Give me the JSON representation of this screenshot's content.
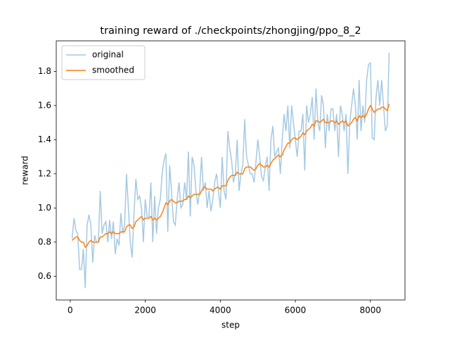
{
  "chart_data": {
    "type": "line",
    "title": "training reward of ./checkpoints/zhongjing/ppo_8_2",
    "x_label": "step",
    "y_label": "reward",
    "x": [
      50,
      100,
      150,
      200,
      250,
      300,
      350,
      400,
      450,
      500,
      550,
      600,
      650,
      700,
      750,
      800,
      850,
      900,
      950,
      1000,
      1050,
      1100,
      1150,
      1200,
      1250,
      1300,
      1350,
      1400,
      1450,
      1500,
      1550,
      1600,
      1650,
      1700,
      1750,
      1800,
      1850,
      1900,
      1950,
      2000,
      2050,
      2100,
      2150,
      2200,
      2250,
      2300,
      2350,
      2400,
      2450,
      2500,
      2550,
      2600,
      2650,
      2700,
      2750,
      2800,
      2850,
      2900,
      2950,
      3000,
      3050,
      3100,
      3150,
      3200,
      3250,
      3300,
      3350,
      3400,
      3450,
      3500,
      3550,
      3600,
      3650,
      3700,
      3750,
      3800,
      3850,
      3900,
      3950,
      4000,
      4050,
      4100,
      4150,
      4200,
      4250,
      4300,
      4350,
      4400,
      4450,
      4500,
      4550,
      4600,
      4650,
      4700,
      4750,
      4800,
      4850,
      4900,
      4950,
      5000,
      5050,
      5100,
      5150,
      5200,
      5250,
      5300,
      5350,
      5400,
      5450,
      5500,
      5550,
      5600,
      5650,
      5700,
      5750,
      5800,
      5850,
      5900,
      5950,
      6000,
      6050,
      6100,
      6150,
      6200,
      6250,
      6300,
      6350,
      6400,
      6450,
      6500,
      6550,
      6600,
      6650,
      6700,
      6750,
      6800,
      6850,
      6900,
      6950,
      7000,
      7050,
      7100,
      7150,
      7200,
      7250,
      7300,
      7350,
      7400,
      7450,
      7500,
      7550,
      7600,
      7650,
      7700,
      7750,
      7800,
      7850,
      7900,
      7950,
      8000,
      8050,
      8100,
      8150,
      8200,
      8250,
      8300,
      8350,
      8400,
      8450,
      8500
    ],
    "series": [
      {
        "name": "original",
        "color": "#1f77b4",
        "alpha": 0.4,
        "values": [
          0.82,
          0.94,
          0.87,
          0.85,
          0.64,
          0.64,
          0.76,
          0.53,
          0.9,
          0.96,
          0.9,
          0.68,
          0.84,
          0.8,
          0.8,
          1.1,
          0.85,
          0.9,
          0.92,
          0.8,
          0.93,
          0.82,
          0.92,
          0.73,
          0.82,
          0.78,
          0.97,
          0.85,
          0.9,
          1.2,
          1.0,
          0.8,
          0.71,
          0.97,
          1.17,
          1.05,
          1.07,
          1.0,
          0.8,
          1.05,
          0.95,
          0.95,
          1.15,
          0.8,
          1.07,
          0.85,
          1.0,
          1.05,
          1.2,
          1.28,
          1.32,
          0.86,
          1.25,
          1.1,
          0.92,
          0.9,
          1.05,
          1.15,
          1.0,
          1.02,
          1.15,
          1.05,
          1.33,
          0.95,
          1.3,
          1.25,
          1.1,
          1.02,
          1.1,
          1.3,
          1.1,
          1.15,
          1.0,
          1.1,
          0.98,
          1.05,
          1.15,
          1.2,
          1.1,
          1.0,
          1.3,
          1.1,
          1.05,
          1.45,
          1.35,
          1.28,
          1.15,
          1.2,
          1.4,
          1.1,
          1.2,
          1.25,
          1.52,
          1.3,
          1.25,
          1.2,
          1.2,
          1.15,
          1.27,
          1.4,
          1.3,
          1.18,
          1.16,
          1.25,
          1.3,
          1.1,
          1.4,
          1.48,
          1.3,
          1.33,
          1.35,
          1.2,
          1.4,
          1.55,
          1.45,
          1.6,
          1.35,
          1.6,
          1.5,
          1.4,
          1.3,
          1.45,
          1.45,
          1.55,
          1.22,
          1.6,
          1.5,
          1.55,
          1.65,
          1.4,
          1.7,
          1.5,
          1.45,
          1.66,
          1.6,
          1.35,
          1.55,
          1.45,
          1.58,
          1.58,
          1.45,
          1.55,
          1.3,
          1.6,
          1.55,
          1.45,
          1.55,
          1.2,
          1.5,
          1.6,
          1.7,
          1.6,
          1.4,
          1.75,
          1.45,
          1.6,
          1.5,
          1.75,
          1.84,
          1.85,
          1.41,
          1.4,
          1.65,
          1.75,
          1.6,
          1.75,
          1.6,
          1.45,
          1.48,
          1.91
        ]
      },
      {
        "name": "smoothed",
        "color": "#ff7f0e",
        "alpha": 1,
        "values": [
          0.81,
          0.82,
          0.83,
          0.83,
          0.81,
          0.8,
          0.8,
          0.77,
          0.78,
          0.8,
          0.81,
          0.8,
          0.8,
          0.8,
          0.8,
          0.83,
          0.83,
          0.84,
          0.85,
          0.85,
          0.86,
          0.85,
          0.86,
          0.85,
          0.85,
          0.85,
          0.86,
          0.86,
          0.86,
          0.89,
          0.9,
          0.9,
          0.88,
          0.89,
          0.92,
          0.93,
          0.94,
          0.95,
          0.93,
          0.94,
          0.94,
          0.94,
          0.95,
          0.93,
          0.94,
          0.93,
          0.94,
          0.95,
          0.97,
          1.0,
          1.03,
          1.02,
          1.04,
          1.05,
          1.04,
          1.03,
          1.03,
          1.04,
          1.04,
          1.04,
          1.05,
          1.05,
          1.07,
          1.06,
          1.07,
          1.08,
          1.08,
          1.08,
          1.08,
          1.1,
          1.12,
          1.12,
          1.11,
          1.11,
          1.11,
          1.1,
          1.11,
          1.12,
          1.12,
          1.11,
          1.13,
          1.13,
          1.13,
          1.16,
          1.18,
          1.19,
          1.19,
          1.19,
          1.21,
          1.2,
          1.2,
          1.2,
          1.23,
          1.24,
          1.24,
          1.24,
          1.23,
          1.22,
          1.23,
          1.25,
          1.26,
          1.25,
          1.24,
          1.24,
          1.25,
          1.24,
          1.26,
          1.28,
          1.29,
          1.3,
          1.31,
          1.3,
          1.31,
          1.34,
          1.36,
          1.38,
          1.38,
          1.4,
          1.41,
          1.41,
          1.4,
          1.41,
          1.42,
          1.44,
          1.43,
          1.45,
          1.46,
          1.47,
          1.49,
          1.48,
          1.51,
          1.51,
          1.5,
          1.51,
          1.52,
          1.5,
          1.5,
          1.5,
          1.51,
          1.51,
          1.5,
          1.51,
          1.49,
          1.5,
          1.51,
          1.5,
          1.51,
          1.48,
          1.49,
          1.5,
          1.52,
          1.53,
          1.51,
          1.54,
          1.53,
          1.54,
          1.53,
          1.55,
          1.58,
          1.6,
          1.58,
          1.56,
          1.57,
          1.58,
          1.58,
          1.59,
          1.59,
          1.58,
          1.57,
          1.61
        ]
      }
    ],
    "xlim": [
      -372.5,
      8922.5
    ],
    "xticks": [
      0,
      2000,
      4000,
      6000,
      8000
    ],
    "ylim": [
      0.461,
      1.979
    ],
    "yticks": [
      0.6,
      0.8,
      {
        "value": 1,
        "label": "1.0"
      },
      1.2,
      1.4,
      1.6,
      1.8
    ],
    "grid": false,
    "legend": "upper left"
  }
}
